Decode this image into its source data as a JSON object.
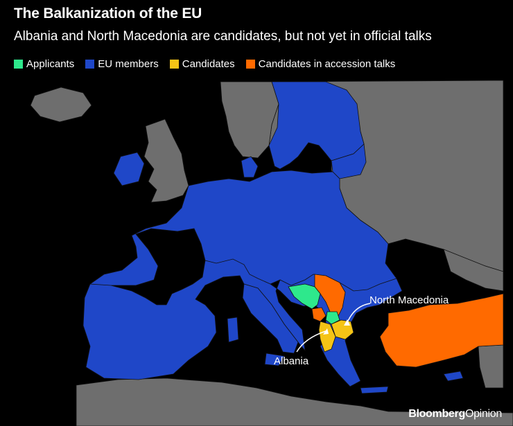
{
  "header": {
    "title": "The Balkanization of the EU",
    "subtitle": "Albania and North Macedonia are candidates, but not yet in official talks"
  },
  "legend": [
    {
      "label": "Applicants",
      "color": "#2EE88C"
    },
    {
      "label": "EU members",
      "color": "#1F47C8"
    },
    {
      "label": "Candidates",
      "color": "#F5C416"
    },
    {
      "label": "Candidates in accession talks",
      "color": "#FF6A00"
    }
  ],
  "colors": {
    "background": "#000000",
    "non_eu_land": "#6E6E6E",
    "border": "#111111"
  },
  "map_labels": {
    "north_macedonia": "North Macedonia",
    "albania": "Albania"
  },
  "credit": {
    "brand": "Bloomberg",
    "suffix": "Opinion"
  }
}
